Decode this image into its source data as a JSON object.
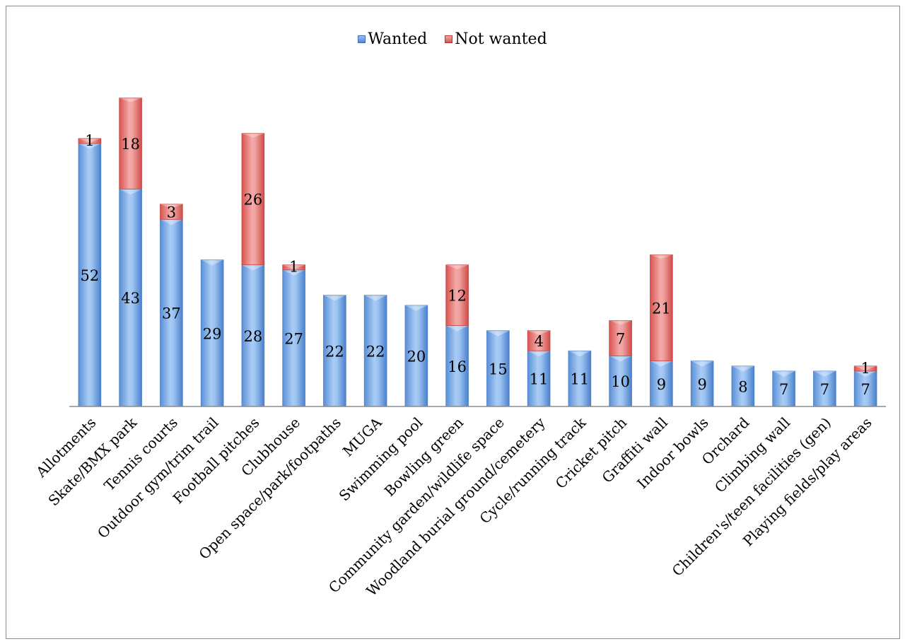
{
  "chart_data": {
    "type": "bar",
    "stacked": true,
    "categories": [
      "Allotments",
      "Skate/BMX park",
      "Tennis courts",
      "Outdoor gym/trim trail",
      "Football pitches",
      "Clubhouse",
      "Open space/park/footpaths",
      "MUGA",
      "Swimming pool",
      "Bowling green",
      "Community garden/wildlife space",
      "Woodland burial ground/cemetery",
      "Cycle/running track",
      "Cricket pitch",
      "Graffiti wall",
      "Indoor bowls",
      "Orchard",
      "Climbing wall",
      "Children's/teen facilities (gen)",
      "Playing fields/play areas"
    ],
    "series": [
      {
        "name": "Wanted",
        "color": "#4f86d0",
        "values": [
          52,
          43,
          37,
          29,
          28,
          27,
          22,
          22,
          20,
          16,
          15,
          11,
          11,
          10,
          9,
          9,
          8,
          7,
          7,
          7
        ],
        "labels": [
          "52",
          "43",
          "37",
          "29",
          "28",
          "27",
          "22",
          "22",
          "20",
          "16",
          "15",
          "11",
          "11",
          "10",
          "9",
          "9",
          "8",
          "7",
          "7",
          "7"
        ]
      },
      {
        "name": "Not wanted",
        "color": "#d9534f",
        "values": [
          1,
          18,
          3,
          0,
          26,
          1,
          0,
          0,
          0,
          12,
          0,
          4,
          0,
          7,
          21,
          0,
          0,
          0,
          0,
          1
        ],
        "labels": [
          "1",
          "18",
          "3",
          "",
          "26",
          "1",
          "",
          "",
          "",
          "12",
          "",
          "4",
          "",
          "7",
          "21",
          "",
          "",
          "",
          "",
          "1"
        ]
      }
    ],
    "ylim": [
      0,
      65
    ],
    "grid": false,
    "legend": "top-center",
    "title": "",
    "xlabel": "",
    "ylabel": ""
  }
}
